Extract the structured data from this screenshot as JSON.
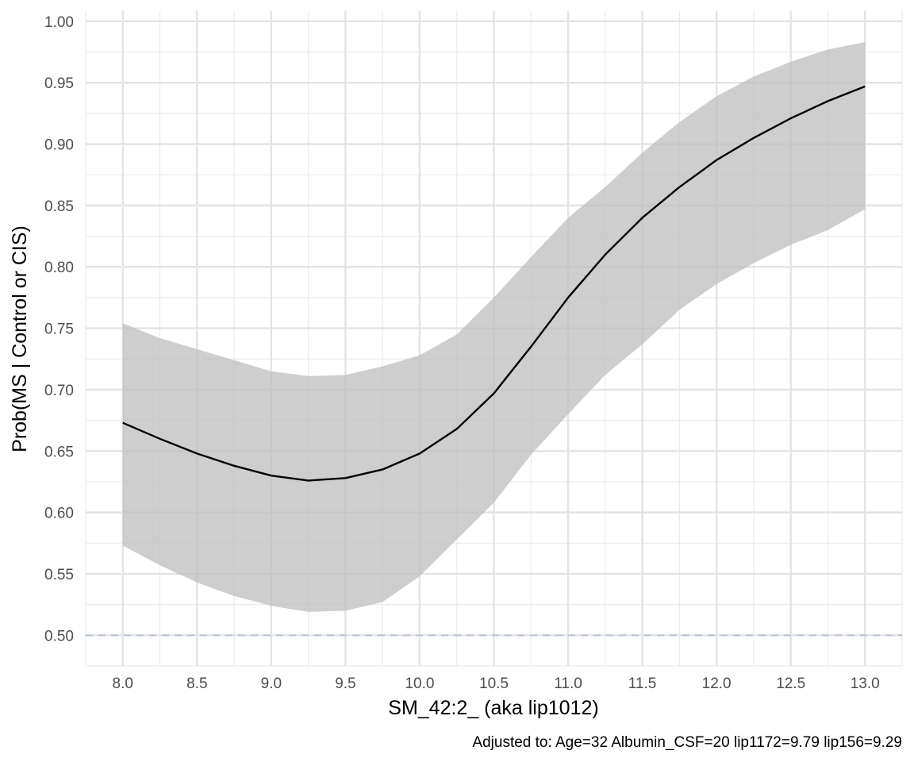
{
  "chart_data": {
    "type": "line",
    "title": "",
    "xlabel": "SM_42:2_ (aka lip1012)",
    "ylabel": "Prob(MS | Control or CIS)",
    "caption": "Adjusted to: Age=32 Albumin_CSF=20 lip1172=9.79 lip156=9.29",
    "xlim": [
      7.75,
      13.25
    ],
    "ylim": [
      0.475,
      1.0083
    ],
    "x_ticks": [
      8.0,
      8.5,
      9.0,
      9.5,
      10.0,
      10.5,
      11.0,
      11.5,
      12.0,
      12.5,
      13.0
    ],
    "x_tick_labels": [
      "8.0",
      "8.5",
      "9.0",
      "9.5",
      "10.0",
      "10.5",
      "11.0",
      "11.5",
      "12.0",
      "12.5",
      "13.0"
    ],
    "y_ticks": [
      0.5,
      0.55,
      0.6,
      0.65,
      0.7,
      0.75,
      0.8,
      0.85,
      0.9,
      0.95,
      1.0
    ],
    "y_tick_labels": [
      "0.50",
      "0.55",
      "0.60",
      "0.65",
      "0.70",
      "0.75",
      "0.80",
      "0.85",
      "0.90",
      "0.95",
      "1.00"
    ],
    "grid": true,
    "reference_line": {
      "y": 0.5,
      "style": "dashed",
      "color": "#b0c4de"
    },
    "series": [
      {
        "x": [
          8.0,
          8.25,
          8.5,
          8.75,
          9.0,
          9.25,
          9.5,
          9.75,
          10.0,
          10.25,
          10.5,
          10.75,
          11.0,
          11.25,
          11.5,
          11.75,
          12.0,
          12.25,
          12.5,
          12.75,
          13.0
        ],
        "y": [
          0.673,
          0.66,
          0.648,
          0.638,
          0.63,
          0.626,
          0.628,
          0.635,
          0.648,
          0.668,
          0.697,
          0.735,
          0.775,
          0.81,
          0.84,
          0.865,
          0.887,
          0.905,
          0.921,
          0.935,
          0.947
        ],
        "lower": [
          0.573,
          0.557,
          0.543,
          0.532,
          0.524,
          0.519,
          0.52,
          0.527,
          0.548,
          0.578,
          0.608,
          0.647,
          0.68,
          0.712,
          0.737,
          0.765,
          0.786,
          0.803,
          0.818,
          0.83,
          0.847
        ],
        "upper": [
          0.754,
          0.742,
          0.733,
          0.724,
          0.715,
          0.711,
          0.712,
          0.719,
          0.728,
          0.745,
          0.775,
          0.808,
          0.84,
          0.865,
          0.893,
          0.918,
          0.939,
          0.955,
          0.967,
          0.977,
          0.983
        ],
        "line_color": "#000000",
        "band_color": "#bdbdbd"
      }
    ]
  }
}
